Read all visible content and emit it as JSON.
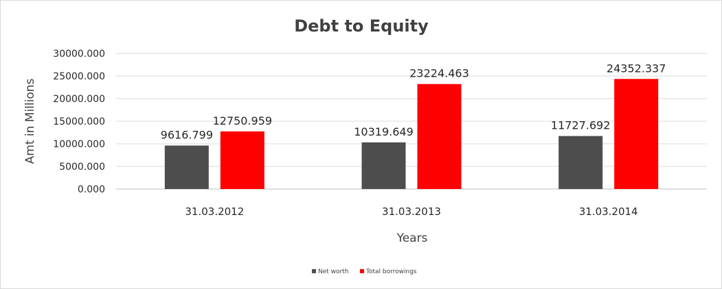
{
  "chart_data": {
    "type": "bar",
    "title": "Debt to Equity",
    "xlabel": "Years",
    "ylabel": "Amt in Millions",
    "categories": [
      "31.03.2012",
      "31.03.2013",
      "31.03.2014"
    ],
    "series": [
      {
        "name": "Net worth",
        "color": "#4d4d4d",
        "values": [
          9616.799,
          10319.649,
          11727.692
        ],
        "labels": [
          "9616.799",
          "10319.649",
          "11727.692"
        ]
      },
      {
        "name": "Total borrowings",
        "color": "#ff0000",
        "values": [
          12750.959,
          23224.463,
          24352.337
        ],
        "labels": [
          "12750.959",
          "23224.463",
          "24352.337"
        ]
      }
    ],
    "ylim": [
      0,
      30000
    ],
    "yticks": [
      0,
      5000,
      10000,
      15000,
      20000,
      25000,
      30000
    ],
    "ytick_labels": [
      "0.000",
      "5000.000",
      "10000.000",
      "15000.000",
      "20000.000",
      "25000.000",
      "30000.000"
    ],
    "grid": true,
    "legend_position": "bottom"
  }
}
